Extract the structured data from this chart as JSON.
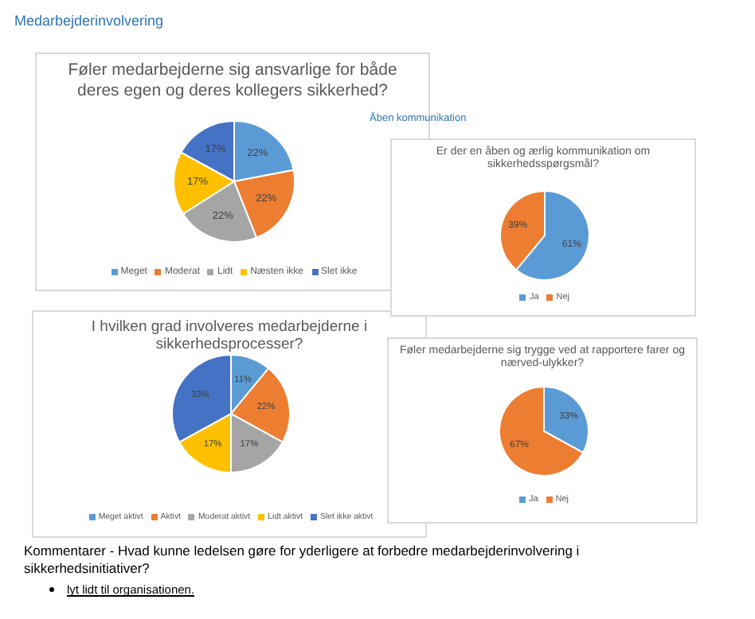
{
  "chart_data": [
    {
      "type": "pie",
      "title": "Føler medarbejderne  sig ansvarlige for både deres egen og deres kollegers sikkerhed?",
      "categories": [
        "Meget",
        "Moderat",
        "Lidt",
        "Næsten ikke",
        "Slet ikke"
      ],
      "values": [
        22,
        22,
        22,
        17,
        17
      ],
      "colors": [
        "#5b9bd5",
        "#ed7d31",
        "#a5a5a5",
        "#ffc000",
        "#4472c4"
      ],
      "value_labels": [
        "22%",
        "22%",
        "22%",
        "17%",
        "17%"
      ],
      "legend": "bottom",
      "annotations": [
        "Medarbejderinvolvering"
      ]
    },
    {
      "type": "pie",
      "title": "I hvilken grad involveres medarbejderne i sikkerhedsprocesser?",
      "categories": [
        "Meget aktivt",
        "Aktivt",
        "Moderat aktivt",
        "Lidt aktivt",
        "Slet ikke aktivt"
      ],
      "values": [
        11,
        22,
        17,
        17,
        33
      ],
      "colors": [
        "#5b9bd5",
        "#ed7d31",
        "#a5a5a5",
        "#ffc000",
        "#4472c4"
      ],
      "value_labels": [
        "11%",
        "22%",
        "17%",
        "17%",
        "33%"
      ],
      "legend": "bottom",
      "annotations": [
        "Kommentarer - Hvad kunne ledelsen gøre for yderligere at forbedre medarbejderinvolvering i sikkerhedsinitiativer?",
        "lyt lidt til organisationen."
      ]
    },
    {
      "type": "pie",
      "title": "Er der en åben og ærlig kommunikation om sikkerhedsspørgsmål?",
      "categories": [
        "Ja",
        "Nej"
      ],
      "values": [
        61,
        39
      ],
      "colors": [
        "#5b9bd5",
        "#ed7d31"
      ],
      "value_labels": [
        "61%",
        "39%"
      ],
      "legend": "bottom",
      "annotations": [
        "Åben kommunikation"
      ]
    },
    {
      "type": "pie",
      "title": "Føler medarbejderne  sig trygge ved at rapportere farer og nærved-ulykker?",
      "categories": [
        "Ja",
        "Nej"
      ],
      "values": [
        33,
        67
      ],
      "colors": [
        "#5b9bd5",
        "#ed7d31"
      ],
      "value_labels": [
        "33%",
        "67%"
      ],
      "legend": "bottom"
    }
  ]
}
